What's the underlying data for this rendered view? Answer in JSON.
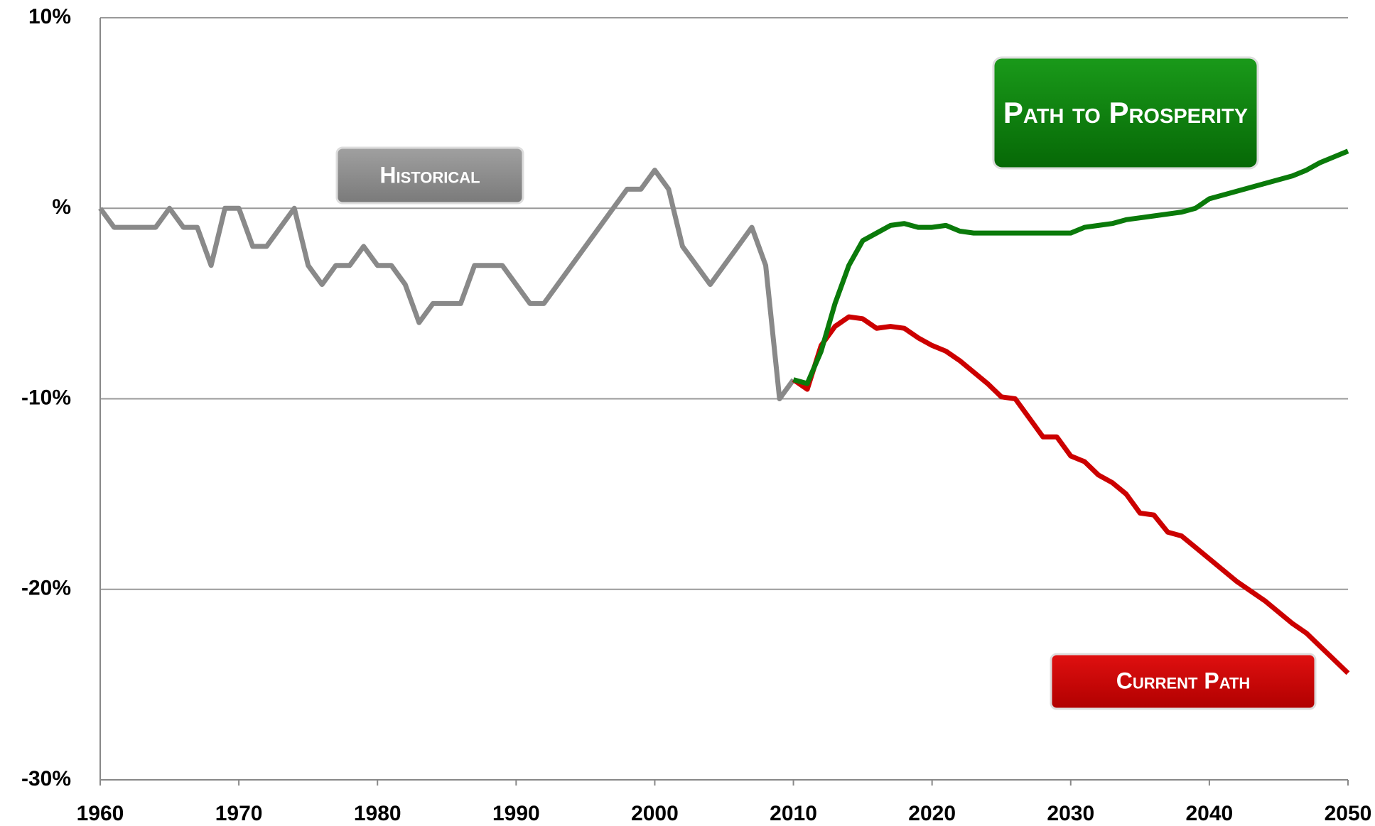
{
  "chart_data": {
    "type": "line",
    "xlim": [
      1960,
      2050
    ],
    "xticks": [
      1960,
      1970,
      1980,
      1990,
      2000,
      2010,
      2020,
      2030,
      2040,
      2050
    ],
    "ylim": [
      -30,
      10
    ],
    "yticks": [
      {
        "value": 10,
        "label": "10%"
      },
      {
        "value": 0,
        "label": "%"
      },
      {
        "value": -10,
        "label": "-10%"
      },
      {
        "value": -20,
        "label": "-20%"
      },
      {
        "value": -30,
        "label": "-30%"
      }
    ],
    "grid": true,
    "series": [
      {
        "name": "Historical",
        "color": "#898989",
        "x": [
          1960,
          1961,
          1962,
          1963,
          1964,
          1965,
          1966,
          1967,
          1968,
          1969,
          1970,
          1971,
          1972,
          1973,
          1974,
          1975,
          1976,
          1977,
          1978,
          1979,
          1980,
          1981,
          1982,
          1983,
          1984,
          1985,
          1986,
          1987,
          1988,
          1989,
          1990,
          1991,
          1992,
          1993,
          1994,
          1995,
          1996,
          1997,
          1998,
          1999,
          2000,
          2001,
          2002,
          2003,
          2004,
          2005,
          2006,
          2007,
          2008,
          2009,
          2010
        ],
        "values": [
          0,
          -1,
          -1,
          -1,
          -1,
          0,
          -1,
          -1,
          -3,
          0,
          0,
          -2,
          -2,
          -1,
          0,
          -3,
          -4,
          -3,
          -3,
          -2,
          -3,
          -3,
          -4,
          -6,
          -5,
          -5,
          -5,
          -3,
          -3,
          -3,
          -4,
          -5,
          -5,
          -4,
          -3,
          -2,
          -1,
          0,
          1,
          1,
          2,
          1,
          -2,
          -3,
          -4,
          -3,
          -2,
          -1,
          -3,
          -10,
          -9
        ]
      },
      {
        "name": "Current Path",
        "color": "#cc0000",
        "x": [
          2010,
          2011,
          2012,
          2013,
          2014,
          2015,
          2016,
          2017,
          2018,
          2019,
          2020,
          2021,
          2022,
          2023,
          2024,
          2025,
          2026,
          2027,
          2028,
          2029,
          2030,
          2031,
          2032,
          2033,
          2034,
          2035,
          2036,
          2037,
          2038,
          2039,
          2040,
          2041,
          2042,
          2043,
          2044,
          2045,
          2046,
          2047,
          2048,
          2049,
          2050
        ],
        "values": [
          -9,
          -9.5,
          -7.2,
          -6.2,
          -5.7,
          -5.8,
          -6.3,
          -6.2,
          -6.3,
          -6.8,
          -7.2,
          -7.5,
          -8,
          -8.6,
          -9.2,
          -9.9,
          -10,
          -11,
          -12,
          -12,
          -13,
          -13.3,
          -14,
          -14.4,
          -15,
          -16,
          -16.1,
          -17,
          -17.2,
          -17.8,
          -18.4,
          -19,
          -19.6,
          -20.1,
          -20.6,
          -21.2,
          -21.8,
          -22.3,
          -23,
          -23.7,
          -24.4
        ]
      },
      {
        "name": "Path to Prosperity",
        "color": "#0a7a0a",
        "x": [
          2010,
          2011,
          2012,
          2013,
          2014,
          2015,
          2016,
          2017,
          2018,
          2019,
          2020,
          2021,
          2022,
          2023,
          2024,
          2025,
          2026,
          2027,
          2028,
          2029,
          2030,
          2031,
          2032,
          2033,
          2034,
          2035,
          2036,
          2037,
          2038,
          2039,
          2040,
          2041,
          2042,
          2043,
          2044,
          2045,
          2046,
          2047,
          2048,
          2049,
          2050
        ],
        "values": [
          -9,
          -9.2,
          -7.5,
          -5,
          -3,
          -1.7,
          -1.3,
          -0.9,
          -0.8,
          -1,
          -1,
          -0.9,
          -1.2,
          -1.3,
          -1.3,
          -1.3,
          -1.3,
          -1.3,
          -1.3,
          -1.3,
          -1.3,
          -1,
          -0.9,
          -0.8,
          -0.6,
          -0.5,
          -0.4,
          -0.3,
          -0.2,
          0,
          0.5,
          0.7,
          0.9,
          1.1,
          1.3,
          1.5,
          1.7,
          2,
          2.4,
          2.7,
          3
        ]
      }
    ]
  }
}
